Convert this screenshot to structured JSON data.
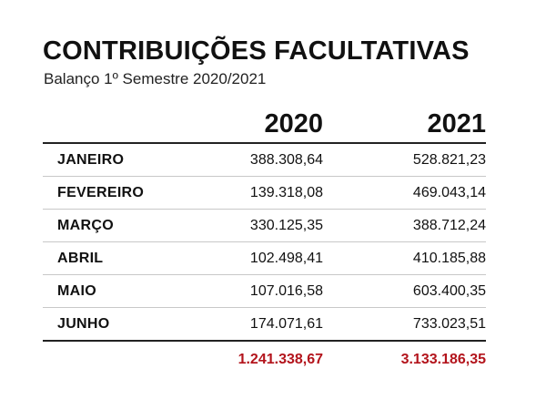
{
  "chart_data": {
    "type": "table",
    "title": "CONTRIBUIÇÕES FACULTATIVAS",
    "subtitle": "Balanço 1º Semestre 2020/2021",
    "columns": [
      "2020",
      "2021"
    ],
    "rows": [
      {
        "label": "JANEIRO",
        "values": [
          "388.308,64",
          "528.821,23"
        ]
      },
      {
        "label": "FEVEREIRO",
        "values": [
          "139.318,08",
          "469.043,14"
        ]
      },
      {
        "label": "MARÇO",
        "values": [
          "330.125,35",
          "388.712,24"
        ]
      },
      {
        "label": "ABRIL",
        "values": [
          "102.498,41",
          "410.185,88"
        ]
      },
      {
        "label": "MAIO",
        "values": [
          "107.016,58",
          "603.400,35"
        ]
      },
      {
        "label": "JUNHO",
        "values": [
          "174.071,61",
          "733.023,51"
        ]
      }
    ],
    "totals": [
      "1.241.338,67",
      "3.133.186,35"
    ],
    "total_color": "#b3141c"
  }
}
